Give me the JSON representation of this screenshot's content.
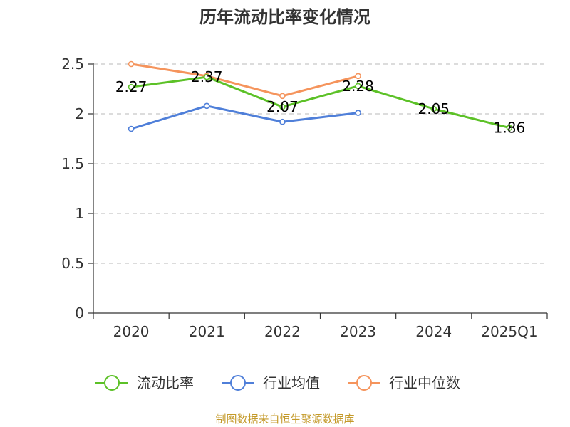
{
  "chart_data": {
    "type": "line",
    "title": "历年流动比率变化情况",
    "categories": [
      "2020",
      "2021",
      "2022",
      "2023",
      "2024",
      "2025Q1"
    ],
    "ylim": [
      0,
      2.5
    ],
    "yticks": [
      "0",
      "0.5",
      "1",
      "1.5",
      "2",
      "2.5"
    ],
    "grid": true,
    "legend_position": "bottom",
    "series": [
      {
        "name": "流动比率",
        "color": "#5cc127",
        "values": [
          2.27,
          2.37,
          2.07,
          2.28,
          2.05,
          1.86
        ],
        "labels": [
          "2.27",
          "2.37",
          "2.07",
          "2.28",
          "2.05",
          "1.86"
        ]
      },
      {
        "name": "行业均值",
        "color": "#4f7fd9",
        "values": [
          1.85,
          2.08,
          1.92,
          2.01,
          null,
          null
        ]
      },
      {
        "name": "行业中位数",
        "color": "#f5945c",
        "values": [
          2.5,
          2.38,
          2.18,
          2.38,
          null,
          null
        ]
      }
    ]
  },
  "source": "制图数据来自恒生聚源数据库"
}
